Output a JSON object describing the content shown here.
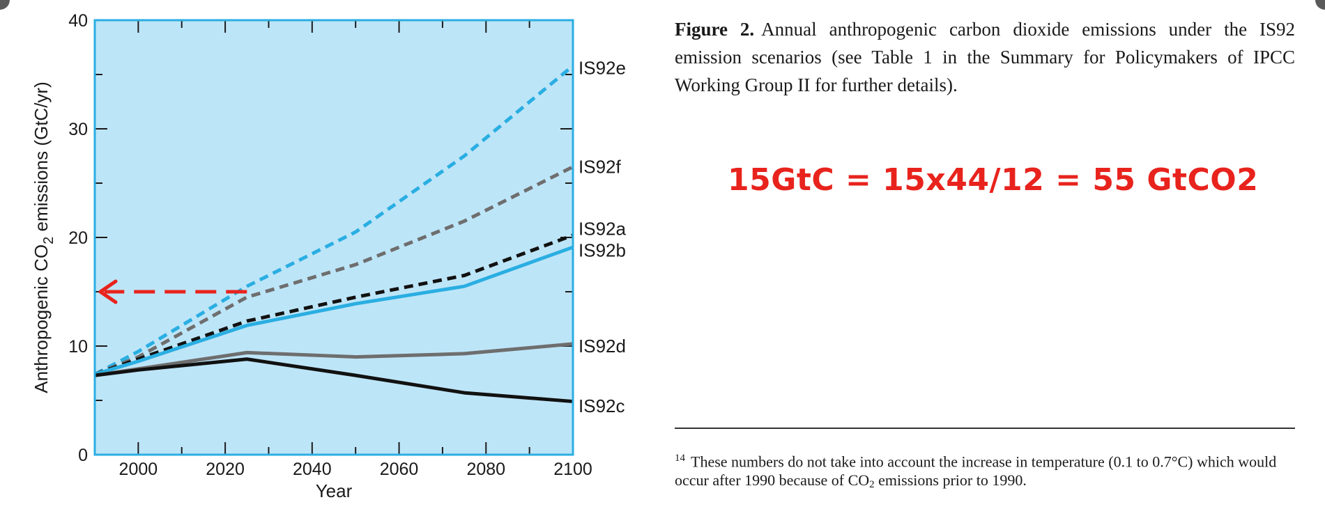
{
  "chart_data": {
    "type": "line",
    "title": "",
    "xlabel": "Year",
    "ylabel_main": "Anthropogenic CO",
    "ylabel_sub": "2",
    "ylabel_tail": " emissions (GtC/yr)",
    "xlim": [
      1990,
      2100
    ],
    "ylim": [
      0,
      40
    ],
    "xticks": [
      2000,
      2020,
      2040,
      2060,
      2080,
      2100
    ],
    "yticks": [
      0,
      10,
      20,
      30,
      40
    ],
    "background": "#bde5f8",
    "series": [
      {
        "name": "IS92e",
        "color": "#2aaee2",
        "dash": true,
        "x": [
          1990,
          2000,
          2025,
          2050,
          2075,
          2100
        ],
        "y": [
          7.4,
          9.5,
          15.5,
          20.5,
          27.5,
          35.8
        ]
      },
      {
        "name": "IS92f",
        "color": "#6e6e6e",
        "dash": true,
        "x": [
          1990,
          2000,
          2025,
          2050,
          2075,
          2100
        ],
        "y": [
          7.4,
          9.0,
          14.5,
          17.5,
          21.5,
          26.5
        ]
      },
      {
        "name": "IS92a",
        "color": "#111111",
        "dash": true,
        "x": [
          1990,
          2000,
          2025,
          2050,
          2075,
          2100
        ],
        "y": [
          7.4,
          8.8,
          12.3,
          14.5,
          16.5,
          20.2
        ]
      },
      {
        "name": "IS92b",
        "color": "#2aaee2",
        "dash": false,
        "x": [
          1990,
          2000,
          2025,
          2050,
          2075,
          2100
        ],
        "y": [
          7.4,
          8.6,
          11.9,
          13.9,
          15.5,
          19.1
        ]
      },
      {
        "name": "IS92d",
        "color": "#6e6e6e",
        "dash": false,
        "x": [
          1990,
          2000,
          2025,
          2050,
          2075,
          2100
        ],
        "y": [
          7.3,
          7.9,
          9.4,
          9.0,
          9.3,
          10.2
        ]
      },
      {
        "name": "IS92c",
        "color": "#111111",
        "dash": false,
        "x": [
          1990,
          2000,
          2025,
          2050,
          2075,
          2100
        ],
        "y": [
          7.3,
          7.8,
          8.8,
          7.3,
          5.7,
          4.9
        ]
      }
    ],
    "labels": [
      {
        "text": "IS92e",
        "y": 35.6
      },
      {
        "text": "IS92f",
        "y": 26.5
      },
      {
        "text": "IS92a",
        "y": 20.8
      },
      {
        "text": "IS92b",
        "y": 18.8
      },
      {
        "text": "IS92d",
        "y": 10.0
      },
      {
        "text": "IS92c",
        "y": 4.5
      }
    ],
    "annotation_arrow": {
      "from_x": 2025,
      "to_x": 1990,
      "y": 15,
      "color": "#e8231d"
    }
  },
  "caption": {
    "label": "Figure 2.",
    "text": "Annual anthropogenic carbon dioxide emissions under the IS92 emission scenarios (see Table 1 in the Summary for Policymakers of IPCC Working Group II for further details)."
  },
  "equation": "15GtC = 15x44/12 = 55 GtCO2",
  "footnote": {
    "marker": "14",
    "text_before": "These numbers do not take into account the increase in temperature (0.1 to 0.7°C) which would occur after 1990 because of CO",
    "sub": "2",
    "text_after": " emissions prior to 1990."
  }
}
